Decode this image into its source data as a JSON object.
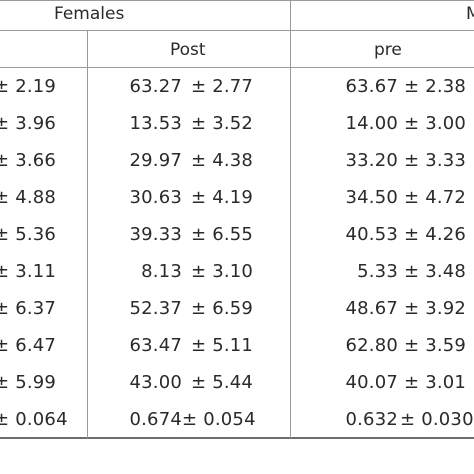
{
  "header": {
    "group_females": "Females",
    "group_males_partial": "M",
    "col_post": "Post",
    "col_pre": "pre"
  },
  "rows": [
    {
      "c1": "± 2.19",
      "c2_val": "63.27",
      "c2_sd": "± 2.77",
      "c3_val": "63.67",
      "c3_sd": "± 2.38"
    },
    {
      "c1": "± 3.96",
      "c2_val": "13.53",
      "c2_sd": "± 3.52",
      "c3_val": "14.00",
      "c3_sd": "± 3.00"
    },
    {
      "c1": "± 3.66",
      "c2_val": "29.97",
      "c2_sd": "± 4.38",
      "c3_val": "33.20",
      "c3_sd": "± 3.33"
    },
    {
      "c1": "± 4.88",
      "c2_val": "30.63",
      "c2_sd": "± 4.19",
      "c3_val": "34.50",
      "c3_sd": "± 4.72"
    },
    {
      "c1": "± 5.36",
      "c2_val": "39.33",
      "c2_sd": "± 6.55",
      "c3_val": "40.53",
      "c3_sd": "± 4.26"
    },
    {
      "c1": "± 3.11",
      "c2_val": "8.13",
      "c2_sd": "± 3.10",
      "c3_val": "5.33",
      "c3_sd": "± 3.48"
    },
    {
      "c1": "± 6.37",
      "c2_val": "52.37",
      "c2_sd": "± 6.59",
      "c3_val": "48.67",
      "c3_sd": "± 3.92"
    },
    {
      "c1": "± 6.47",
      "c2_val": "63.47",
      "c2_sd": "± 5.11",
      "c3_val": "62.80",
      "c3_sd": "± 3.59"
    },
    {
      "c1": "± 5.99",
      "c2_val": "43.00",
      "c2_sd": "± 5.44",
      "c3_val": "40.07",
      "c3_sd": "± 3.01"
    },
    {
      "c1": "± 0.064",
      "c2_val": "0.674",
      "c2_sd": "± 0.054",
      "c3_val": "0.632",
      "c3_sd": "± 0.030"
    }
  ]
}
